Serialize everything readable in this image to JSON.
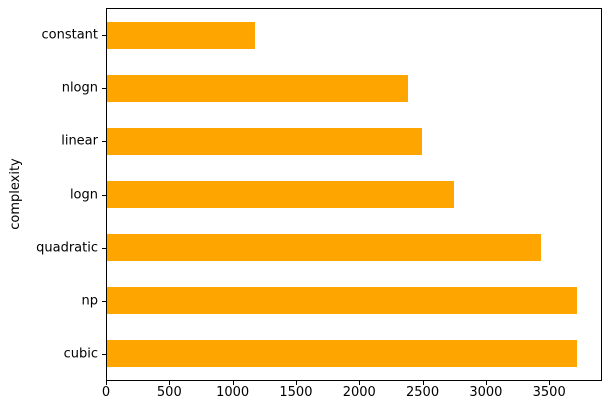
{
  "chart_data": {
    "type": "bar",
    "orientation": "horizontal",
    "category_order": "top-to-bottom",
    "categories": [
      "constant",
      "nlogn",
      "linear",
      "logn",
      "quadratic",
      "np",
      "cubic"
    ],
    "values": [
      1170,
      2390,
      2495,
      2755,
      3440,
      3730,
      3725
    ],
    "xlabel": "",
    "ylabel": "complexity",
    "xticks": [
      0,
      500,
      1000,
      1500,
      2000,
      2500,
      3000,
      3500
    ],
    "xtick_labels": [
      "0",
      "500",
      "1000",
      "1500",
      "2000",
      "2500",
      "3000",
      "3500"
    ],
    "xlim": [
      0,
      3917
    ],
    "bar_color": "#FFA500",
    "background_color": "#FFFFFF",
    "spine_color": "#000000",
    "grid": false,
    "legend": false
  }
}
